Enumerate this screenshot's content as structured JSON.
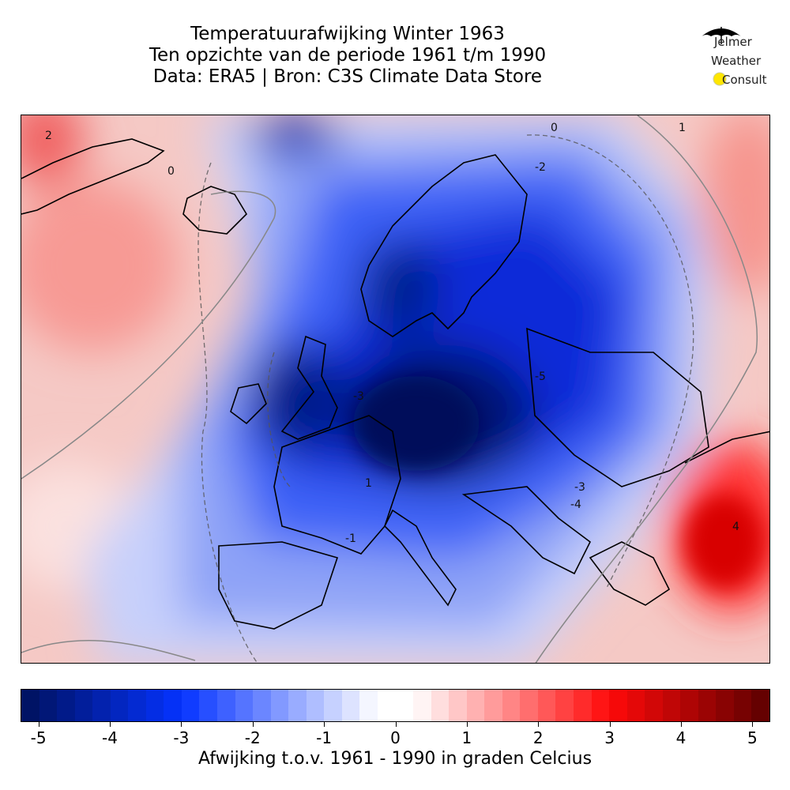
{
  "title": {
    "line1": "Temperatuurafwijking Winter 1963",
    "line2": "Ten opzichte van de periode 1961 t/m 1990",
    "line3": "Data: ERA5 | Bron: C3S Climate Data Store"
  },
  "logo": {
    "line1": "Jelmer",
    "line2": "Weather",
    "line3": "Consult"
  },
  "map": {
    "contour_labels": [
      "2",
      "0",
      "1",
      "-2",
      "-3",
      "-5",
      "-1",
      "-3",
      "-4",
      "4",
      "1",
      "0"
    ]
  },
  "colorbar": {
    "min": -5.25,
    "max": 5.25,
    "step": 0.25,
    "ticks": [
      "-5",
      "-4",
      "-3",
      "-2",
      "-1",
      "0",
      "1",
      "2",
      "3",
      "4",
      "5"
    ],
    "label": "Afwijking t.o.v. 1961 - 1990 in graden Celcius",
    "cold_color": "#00115c",
    "mid_cold_color": "#0533ff",
    "neutral_color": "#ffffff",
    "mid_warm_color": "#ff0a0a",
    "warm_color": "#5c0000"
  }
}
